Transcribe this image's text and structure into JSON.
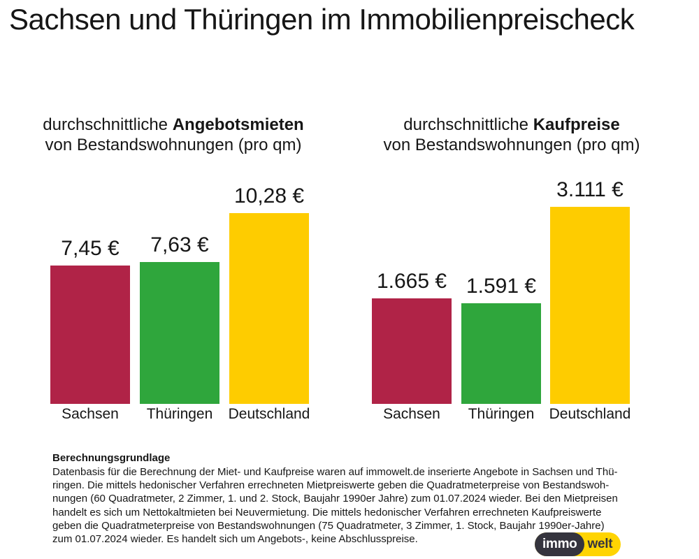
{
  "title": "Sachsen und Thüringen im Immobilienpreischeck",
  "subtitles": [
    {
      "prefix": "durchschnittliche ",
      "bold": "Angebotsmieten",
      "line2": "von Bestandswohnungen (pro qm)"
    },
    {
      "prefix": "durchschnittliche ",
      "bold": "Kaufpreise",
      "line2": "von Bestandswohnungen (pro qm)"
    }
  ],
  "chart_data": [
    {
      "type": "bar",
      "title": "durchschnittliche Angebotsmieten von Bestandswohnungen (pro qm)",
      "categories": [
        "Sachsen",
        "Thüringen",
        "Deutschland"
      ],
      "values": [
        7.45,
        7.63,
        10.28
      ],
      "value_labels": [
        "7,45 €",
        "7,63 €",
        "10,28 €"
      ],
      "unit": "€ pro qm",
      "colors": [
        "#B02347",
        "#2FA63C",
        "#FECC00"
      ],
      "grid": false,
      "legend": "none"
    },
    {
      "type": "bar",
      "title": "durchschnittliche Kaufpreise von Bestandswohnungen (pro qm)",
      "categories": [
        "Sachsen",
        "Thüringen",
        "Deutschland"
      ],
      "values": [
        1665,
        1591,
        3111
      ],
      "value_labels": [
        "1.665 €",
        "1.591 €",
        "3.111 €"
      ],
      "unit": "€ pro qm",
      "colors": [
        "#B02347",
        "#2FA63C",
        "#FECC00"
      ],
      "grid": false,
      "legend": "none"
    }
  ],
  "footer": {
    "heading": "Berechnungsgrundlage",
    "lines": [
      "Datenbasis für die Berechnung der Miet- und Kaufpreise waren auf immowelt.de inserierte Angebote in Sachsen und Thü-",
      "ringen. Die mittels hedonischer Verfahren errechneten Mietpreiswerte geben die Quadratmeterpreise von Bestandswoh-",
      "nungen (60 Quadratmeter, 2 Zimmer, 1. und 2. Stock, Baujahr 1990er Jahre) zum 01.07.2024 wieder. Bei den Mietpreisen",
      "handelt es sich um Nettokaltmieten bei Neuvermietung. Die mittels hedonischer Verfahren errechneten Kaufpreiswerte",
      "geben die Quadratmeterpreise von Bestandswohnungen (75 Quadratmeter, 3 Zimmer, 1. Stock, Baujahr 1990er-Jahre)",
      "zum 01.07.2024 wieder. Es handelt sich um Angebots-, keine Abschlusspreise."
    ]
  },
  "logo": {
    "part1": "immo",
    "part2": "welt",
    "yellow": "#FFD402",
    "dark": "#35343E"
  },
  "colors": {
    "sachsen": "#B02347",
    "thueringen": "#2FA63C",
    "deutschland": "#FECC00",
    "background": "#FFFFFF",
    "text": "#161616"
  }
}
